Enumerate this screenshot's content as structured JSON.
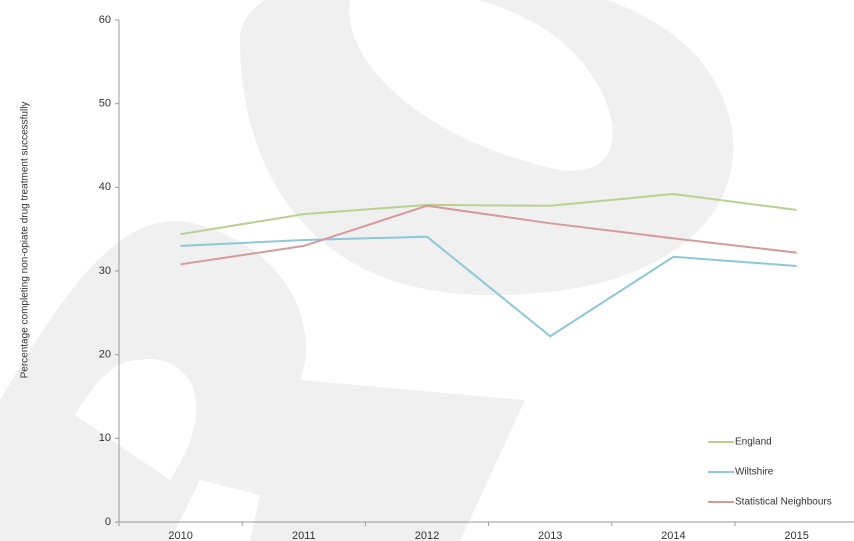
{
  "chart_data": {
    "type": "line",
    "y_label": "Percentage completing non-opiate drug treatment successfully",
    "categories": [
      "2010",
      "2011",
      "2012",
      "2013",
      "2014",
      "2015"
    ],
    "series": [
      {
        "name": "England",
        "color": "#b9d08f",
        "values": [
          34.4,
          36.8,
          37.9,
          37.8,
          39.2,
          37.3
        ]
      },
      {
        "name": "Wiltshire",
        "color": "#8cc8d8",
        "values": [
          33.0,
          33.7,
          34.1,
          22.2,
          31.7,
          30.6
        ]
      },
      {
        "name": "Statistical Neighbours",
        "color": "#d69a9a",
        "values": [
          30.8,
          33.0,
          37.8,
          35.7,
          33.9,
          32.2
        ]
      }
    ],
    "ylim": [
      0,
      60
    ],
    "yticks": [
      0,
      10,
      20,
      30,
      40,
      50,
      60
    ],
    "grid": false,
    "legend": "bottom-right"
  }
}
